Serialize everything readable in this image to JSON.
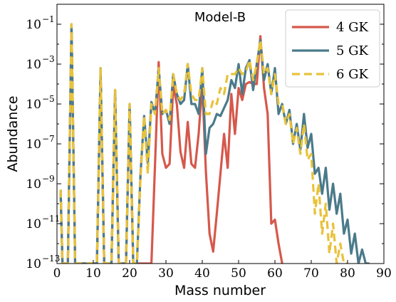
{
  "chart_data": {
    "type": "line",
    "title": "Model-B",
    "xlabel": "Mass number",
    "ylabel": "Abundance",
    "xlim": [
      0,
      90
    ],
    "ylim_log10": [
      -13,
      0
    ],
    "y_scale": "log",
    "x_ticks": [
      0,
      10,
      20,
      30,
      40,
      50,
      60,
      70,
      80,
      90
    ],
    "y_ticks_exp": [
      -13,
      -11,
      -9,
      -7,
      -5,
      -3,
      -1
    ],
    "y_tick_base": "10",
    "grid": false,
    "legend_position": "top-right",
    "series": [
      {
        "name": "4 GK",
        "color": "#d6584b",
        "dash": "solid",
        "points": [
          [
            1,
            -9.3
          ],
          [
            1.5,
            -13
          ],
          [
            3,
            -13
          ],
          [
            4,
            -1.1
          ],
          [
            5,
            -13
          ],
          [
            11,
            -13
          ],
          [
            12,
            -3.5
          ],
          [
            13,
            -13
          ],
          [
            15,
            -13
          ],
          [
            16,
            -4.5
          ],
          [
            17,
            -13
          ],
          [
            19,
            -13
          ],
          [
            20,
            -5.2
          ],
          [
            21,
            -13
          ],
          [
            24,
            -13
          ],
          [
            25,
            -13
          ],
          [
            26,
            -13
          ],
          [
            27,
            -8
          ],
          [
            28,
            -2.9
          ],
          [
            29,
            -7.5
          ],
          [
            30,
            -8.2
          ],
          [
            31,
            -8
          ],
          [
            32,
            -4.1
          ],
          [
            33,
            -5
          ],
          [
            34,
            -7.4
          ],
          [
            35,
            -8.2
          ],
          [
            36,
            -5.9
          ],
          [
            37,
            -8
          ],
          [
            38,
            -8.2
          ],
          [
            39,
            -6.5
          ],
          [
            40,
            -4
          ],
          [
            41,
            -8.4
          ],
          [
            42,
            -11.5
          ],
          [
            43,
            -12.4
          ],
          [
            44,
            -10.5
          ],
          [
            45,
            -8.5
          ],
          [
            46,
            -6.5
          ],
          [
            47,
            -8.2
          ],
          [
            48,
            -4.5
          ],
          [
            49,
            -6.5
          ],
          [
            50,
            -4.2
          ],
          [
            51,
            -4.8
          ],
          [
            52,
            -4
          ],
          [
            53,
            -3.9
          ],
          [
            54,
            -4
          ],
          [
            55,
            -4
          ],
          [
            56,
            -1.6
          ],
          [
            57,
            -4.2
          ],
          [
            58,
            -5.5
          ],
          [
            59,
            -11
          ],
          [
            60,
            -10.8
          ],
          [
            61,
            -12
          ],
          [
            62,
            -13
          ]
        ]
      },
      {
        "name": "5 GK",
        "color": "#4a7a8a",
        "dash": "solid",
        "points": [
          [
            1,
            -9.3
          ],
          [
            1.5,
            -13
          ],
          [
            3,
            -13
          ],
          [
            4,
            -1
          ],
          [
            5,
            -13
          ],
          [
            11,
            -13
          ],
          [
            12,
            -3.2
          ],
          [
            13,
            -13
          ],
          [
            15,
            -13
          ],
          [
            16,
            -4.3
          ],
          [
            17,
            -13
          ],
          [
            19,
            -13
          ],
          [
            20,
            -5
          ],
          [
            21,
            -13
          ],
          [
            22,
            -13
          ],
          [
            23,
            -8.5
          ],
          [
            24,
            -5.6
          ],
          [
            25,
            -8
          ],
          [
            26,
            -4.9
          ],
          [
            27,
            -5.5
          ],
          [
            28,
            -3.2
          ],
          [
            29,
            -5.5
          ],
          [
            30,
            -5.3
          ],
          [
            31,
            -6
          ],
          [
            32,
            -3.5
          ],
          [
            33,
            -4.5
          ],
          [
            34,
            -5
          ],
          [
            35,
            -4.8
          ],
          [
            36,
            -3
          ],
          [
            37,
            -5
          ],
          [
            38,
            -5
          ],
          [
            39,
            -5.5
          ],
          [
            40,
            -3.2
          ],
          [
            41,
            -7.5
          ],
          [
            42,
            -6.2
          ],
          [
            43,
            -6
          ],
          [
            44,
            -5.5
          ],
          [
            45,
            -5.6
          ],
          [
            46,
            -5.2
          ],
          [
            47,
            -4.8
          ],
          [
            48,
            -3.8
          ],
          [
            49,
            -4.2
          ],
          [
            50,
            -3
          ],
          [
            51,
            -4.5
          ],
          [
            52,
            -3.2
          ],
          [
            53,
            -2.8
          ],
          [
            54,
            -4.3
          ],
          [
            55,
            -3
          ],
          [
            56,
            -1.8
          ],
          [
            57,
            -3.8
          ],
          [
            58,
            -3
          ],
          [
            59,
            -4.5
          ],
          [
            60,
            -3.2
          ],
          [
            61,
            -5.5
          ],
          [
            62,
            -5
          ],
          [
            63,
            -6
          ],
          [
            64,
            -5.3
          ],
          [
            65,
            -7
          ],
          [
            66,
            -6
          ],
          [
            67,
            -7.3
          ],
          [
            68,
            -5.5
          ],
          [
            69,
            -7.2
          ],
          [
            70,
            -6.5
          ],
          [
            71,
            -8.5
          ],
          [
            72,
            -8.2
          ],
          [
            73,
            -9.5
          ],
          [
            74,
            -8.2
          ],
          [
            75,
            -10.3
          ],
          [
            76,
            -9
          ],
          [
            77,
            -10.5
          ],
          [
            78,
            -9.5
          ],
          [
            79,
            -11.5
          ],
          [
            80,
            -10.8
          ],
          [
            81,
            -12.5
          ],
          [
            82,
            -11.5
          ],
          [
            83,
            -13
          ],
          [
            84,
            -12.3
          ],
          [
            85,
            -13
          ],
          [
            86,
            -13
          ]
        ]
      },
      {
        "name": "6 GK",
        "color": "#e8c23a",
        "dash": "dashed",
        "points": [
          [
            1,
            -9.3
          ],
          [
            1.5,
            -13
          ],
          [
            3,
            -13
          ],
          [
            4,
            -1
          ],
          [
            5,
            -13
          ],
          [
            11,
            -13
          ],
          [
            12,
            -3.2
          ],
          [
            13,
            -13
          ],
          [
            15,
            -13
          ],
          [
            16,
            -4.3
          ],
          [
            17,
            -13
          ],
          [
            19,
            -13
          ],
          [
            20,
            -5
          ],
          [
            21,
            -13
          ],
          [
            22,
            -13
          ],
          [
            23,
            -8.7
          ],
          [
            24,
            -5.6
          ],
          [
            25,
            -8.5
          ],
          [
            26,
            -5
          ],
          [
            27,
            -5.5
          ],
          [
            28,
            -3.2
          ],
          [
            29,
            -5.5
          ],
          [
            30,
            -5.3
          ],
          [
            31,
            -5.8
          ],
          [
            32,
            -3.5
          ],
          [
            33,
            -4.5
          ],
          [
            34,
            -4.8
          ],
          [
            35,
            -4.5
          ],
          [
            36,
            -3
          ],
          [
            37,
            -4.5
          ],
          [
            38,
            -4.8
          ],
          [
            39,
            -4.8
          ],
          [
            40,
            -3.2
          ],
          [
            41,
            -5.5
          ],
          [
            42,
            -5.5
          ],
          [
            43,
            -4.8
          ],
          [
            44,
            -5
          ],
          [
            45,
            -4.2
          ],
          [
            46,
            -4.5
          ],
          [
            47,
            -3.5
          ],
          [
            48,
            -3.5
          ],
          [
            49,
            -3.5
          ],
          [
            50,
            -3.2
          ],
          [
            51,
            -3.5
          ],
          [
            52,
            -3.4
          ],
          [
            53,
            -2.8
          ],
          [
            54,
            -3.8
          ],
          [
            55,
            -3
          ],
          [
            56,
            -1.8
          ],
          [
            57,
            -3.5
          ],
          [
            58,
            -3.2
          ],
          [
            59,
            -4.5
          ],
          [
            60,
            -3.5
          ],
          [
            61,
            -5
          ],
          [
            62,
            -5
          ],
          [
            63,
            -6
          ],
          [
            64,
            -5.5
          ],
          [
            65,
            -7
          ],
          [
            66,
            -6.2
          ],
          [
            67,
            -7.5
          ],
          [
            68,
            -6
          ],
          [
            69,
            -7.8
          ],
          [
            70,
            -7.5
          ],
          [
            71,
            -10.5
          ],
          [
            72,
            -9
          ],
          [
            73,
            -11.5
          ],
          [
            74,
            -10
          ],
          [
            75,
            -12.5
          ],
          [
            76,
            -11
          ],
          [
            77,
            -13
          ],
          [
            78,
            -12
          ],
          [
            79,
            -13
          ],
          [
            80,
            -13
          ]
        ]
      }
    ]
  }
}
